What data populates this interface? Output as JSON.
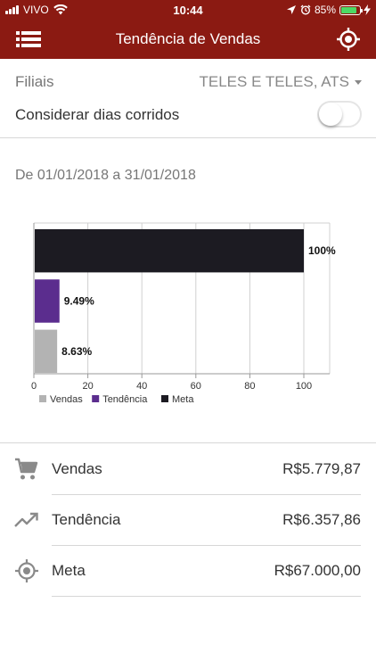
{
  "status_bar": {
    "carrier": "VIVO",
    "time": "10:44",
    "battery": "85%",
    "battery_level": 0.85
  },
  "app_bar": {
    "title": "Tendência de Vendas",
    "menu_icon": "list-menu-icon",
    "action_icon": "target-icon"
  },
  "filters": {
    "branch_label": "Filiais",
    "branch_value": "TELES E TELES, ATS",
    "consecutive_days_label": "Considerar dias corridos",
    "consecutive_days_on": false
  },
  "date_range": "De 01/01/2018 a 31/01/2018",
  "colors": {
    "primary": "#8b1a12",
    "vendas": "#b3b3b3",
    "tendencia": "#5b2d8e",
    "meta": "#1c1b22"
  },
  "chart_data": {
    "type": "bar",
    "orientation": "horizontal",
    "categories": [
      "Meta",
      "Tendência",
      "Vendas"
    ],
    "values": [
      100,
      9.49,
      8.63
    ],
    "data_labels": [
      "100%",
      "9.49%",
      "8.63%"
    ],
    "colors": [
      "#1c1b22",
      "#5b2d8e",
      "#b3b3b3"
    ],
    "xlim": [
      0,
      100
    ],
    "x_ticks": [
      "0",
      "20",
      "40",
      "60",
      "80",
      "100"
    ],
    "grid": true,
    "legend": [
      "Vendas",
      "Tendência",
      "Meta"
    ],
    "legend_colors": [
      "#b3b3b3",
      "#5b2d8e",
      "#1c1b22"
    ],
    "legend_position": "bottom-left"
  },
  "summary": [
    {
      "label": "Vendas",
      "value": "R$5.779,87",
      "icon": "cart-icon"
    },
    {
      "label": "Tendência",
      "value": "R$6.357,86",
      "icon": "trending-up-icon"
    },
    {
      "label": "Meta",
      "value": "R$67.000,00",
      "icon": "target-icon"
    }
  ]
}
